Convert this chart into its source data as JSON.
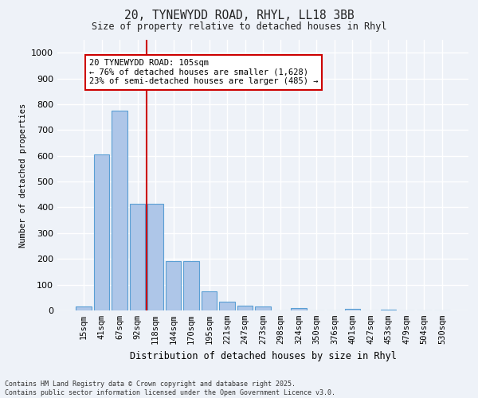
{
  "title_line1": "20, TYNEWYDD ROAD, RHYL, LL18 3BB",
  "title_line2": "Size of property relative to detached houses in Rhyl",
  "xlabel": "Distribution of detached houses by size in Rhyl",
  "ylabel": "Number of detached properties",
  "bar_labels": [
    "15sqm",
    "41sqm",
    "67sqm",
    "92sqm",
    "118sqm",
    "144sqm",
    "170sqm",
    "195sqm",
    "221sqm",
    "247sqm",
    "273sqm",
    "298sqm",
    "324sqm",
    "350sqm",
    "376sqm",
    "401sqm",
    "427sqm",
    "453sqm",
    "479sqm",
    "504sqm",
    "530sqm"
  ],
  "bar_values": [
    15,
    605,
    775,
    415,
    415,
    190,
    190,
    75,
    35,
    20,
    15,
    0,
    10,
    0,
    0,
    5,
    0,
    2,
    0,
    0,
    0
  ],
  "bar_color": "#aec6e8",
  "bar_edge_color": "#5a9fd4",
  "vline_color": "#cc0000",
  "vline_x_index": 4.5,
  "annotation_text": "20 TYNEWYDD ROAD: 105sqm\n← 76% of detached houses are smaller (1,628)\n23% of semi-detached houses are larger (485) →",
  "annotation_box_color": "#ffffff",
  "annotation_box_edge": "#cc0000",
  "ylim": [
    0,
    1050
  ],
  "yticks": [
    0,
    100,
    200,
    300,
    400,
    500,
    600,
    700,
    800,
    900,
    1000
  ],
  "footer_line1": "Contains HM Land Registry data © Crown copyright and database right 2025.",
  "footer_line2": "Contains public sector information licensed under the Open Government Licence v3.0.",
  "bg_color": "#eef2f8",
  "grid_color": "#ffffff",
  "font_color": "#222222"
}
